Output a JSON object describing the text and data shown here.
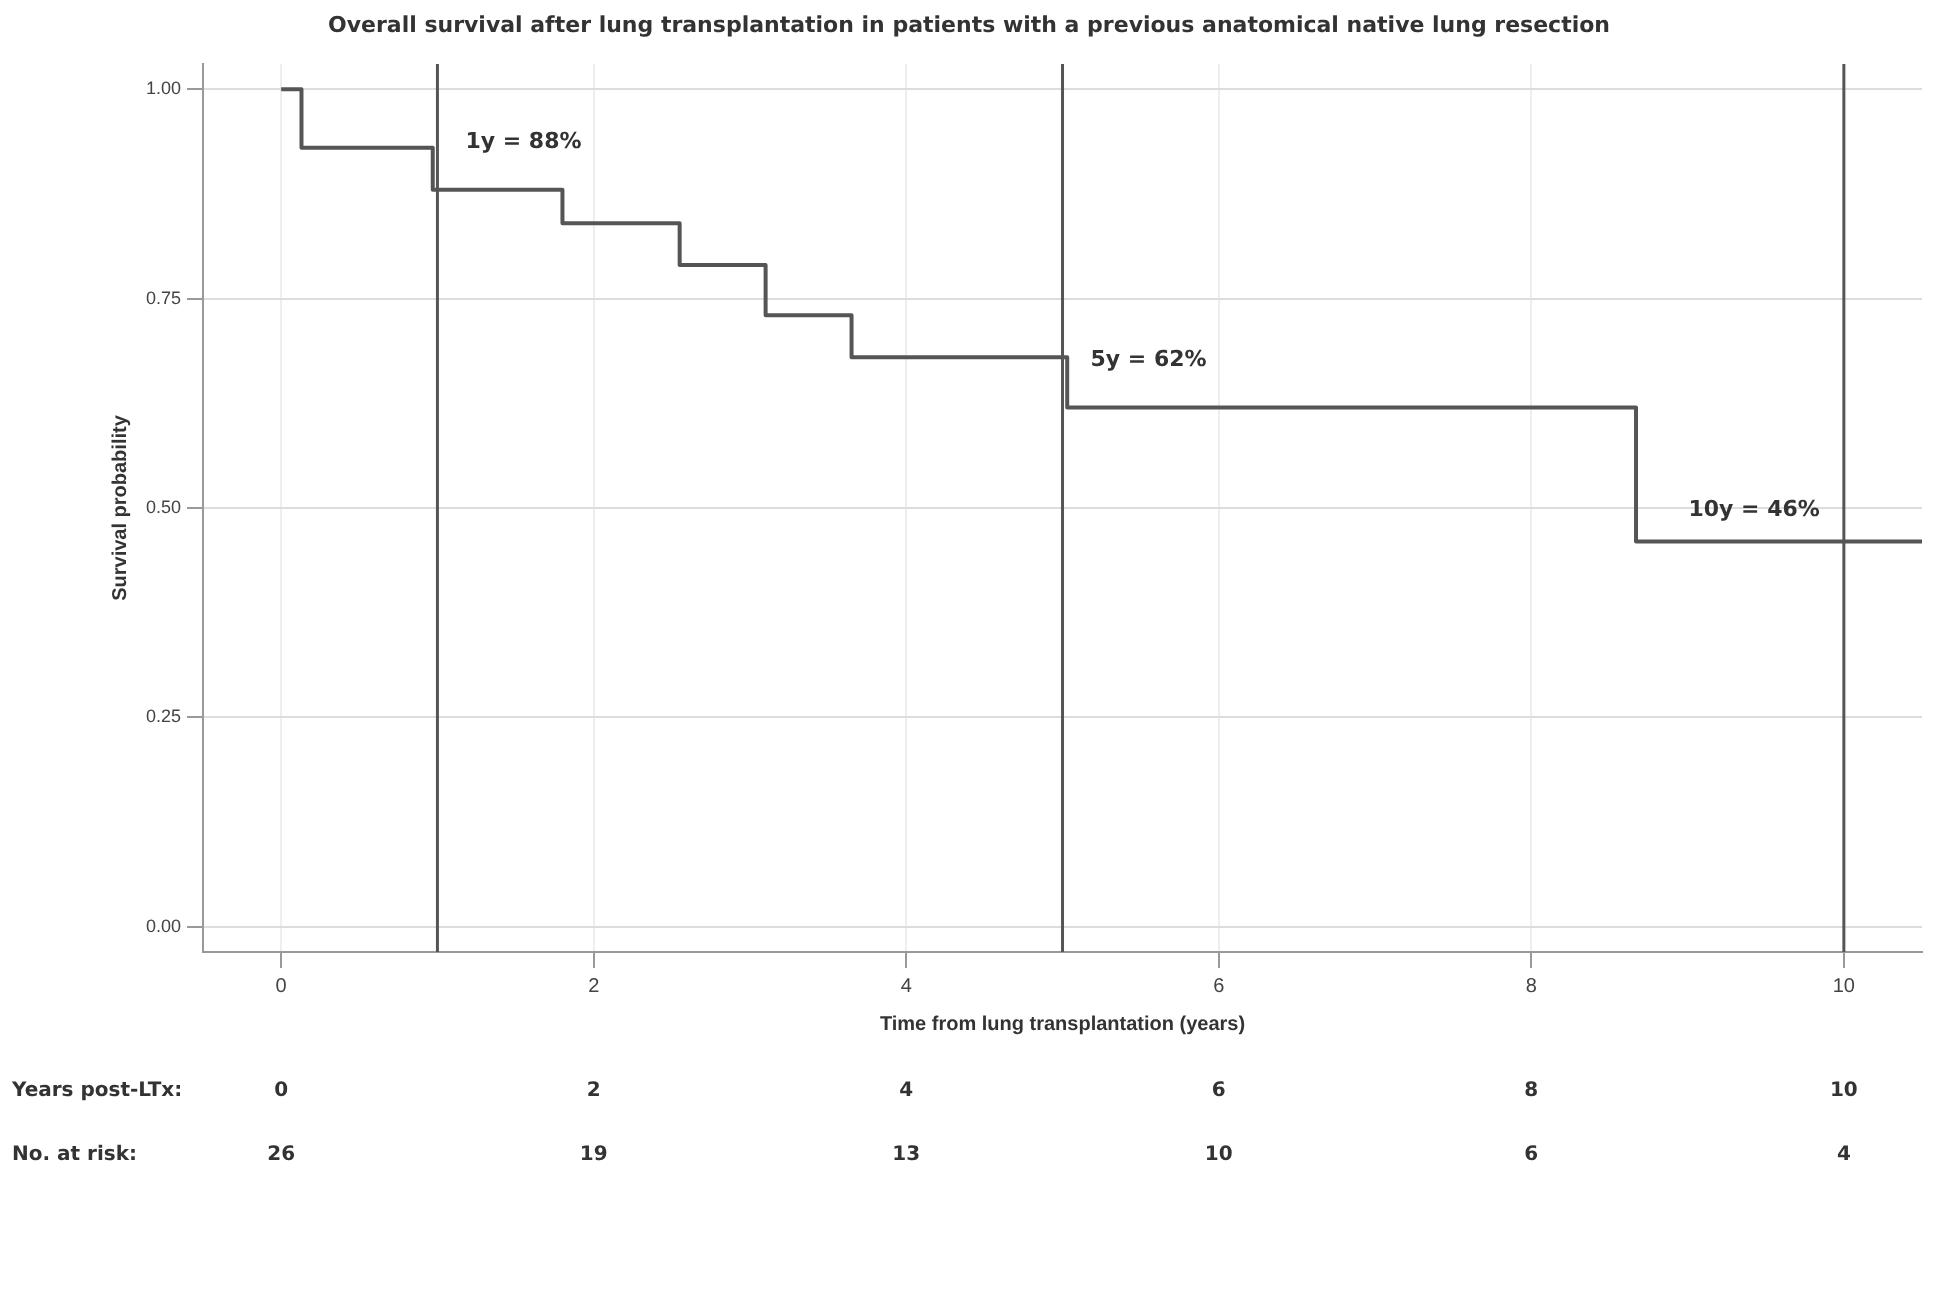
{
  "chart_data": {
    "type": "step",
    "title": "Overall survival after lung transplantation in patients with a previous anatomical native lung resection",
    "xlabel": "Time from lung transplantation (years)",
    "ylabel": "Survival probability",
    "series": [
      {
        "color": "#555555",
        "x": [
          0,
          0.13,
          0.97,
          1.8,
          2.55,
          3.1,
          3.65,
          5.03,
          8.67,
          10.5
        ],
        "values": [
          1,
          0.93,
          0.88,
          0.84,
          0.79,
          0.73,
          0.68,
          0.62,
          0.46,
          0.46
        ]
      }
    ],
    "xlim": [
      -0.5,
      10.5
    ],
    "xticks": [
      0,
      2,
      4,
      6,
      8,
      10
    ],
    "ylim": [
      -0.03,
      1.03
    ],
    "yticks": [
      {
        "value": 0,
        "label": "0.00"
      },
      {
        "value": 0.25,
        "label": "0.25"
      },
      {
        "value": 0.5,
        "label": "0.50"
      },
      {
        "value": 0.75,
        "label": "0.75"
      },
      {
        "value": 1,
        "label": "1.00"
      }
    ],
    "ref_lines": [
      {
        "axis": "x",
        "value": 1,
        "color": "#555555"
      },
      {
        "axis": "x",
        "value": 5,
        "color": "#555555"
      },
      {
        "axis": "x",
        "value": 10,
        "color": "#555555"
      }
    ],
    "annotations": [
      {
        "text": "1y = 88%",
        "x": 1,
        "y": 0.88
      },
      {
        "text": "5y = 62%",
        "x": 5,
        "y": 0.62
      },
      {
        "text": "10y = 46%",
        "x": 10,
        "y": 0.46
      },
      "Years post-LTx:",
      "0",
      "2",
      "4",
      "6",
      "8",
      "10",
      "No. at risk:",
      "26",
      "19",
      "13",
      "10",
      "6",
      "4"
    ],
    "grid": true,
    "legend": false,
    "line_style": "solid",
    "marker": "none"
  }
}
